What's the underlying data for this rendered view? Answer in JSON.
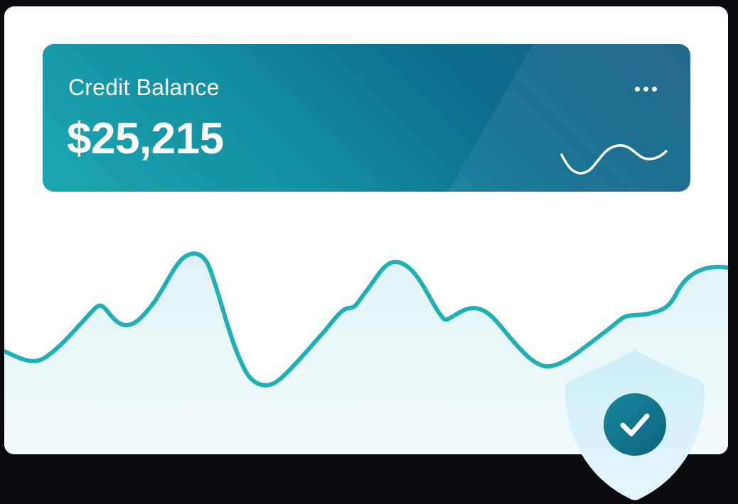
{
  "card": {
    "label": "Credit Balance",
    "amount": "$25,215",
    "menu_icon": "more-horizontal-icon",
    "sparkline_icon": "sparkline-wave-icon"
  },
  "badge": {
    "icon": "shield-check-icon",
    "status": "verified"
  },
  "colors": {
    "background": "#0b0b0f",
    "panel": "#ffffff",
    "card_gradient_start": "#1ba7b1",
    "card_gradient_end": "#175f86",
    "line": "#1fb0b6",
    "area_fill": "#e3f4f6",
    "shield_fill": "#d6f0fb",
    "check_circle": "#13788f"
  }
}
